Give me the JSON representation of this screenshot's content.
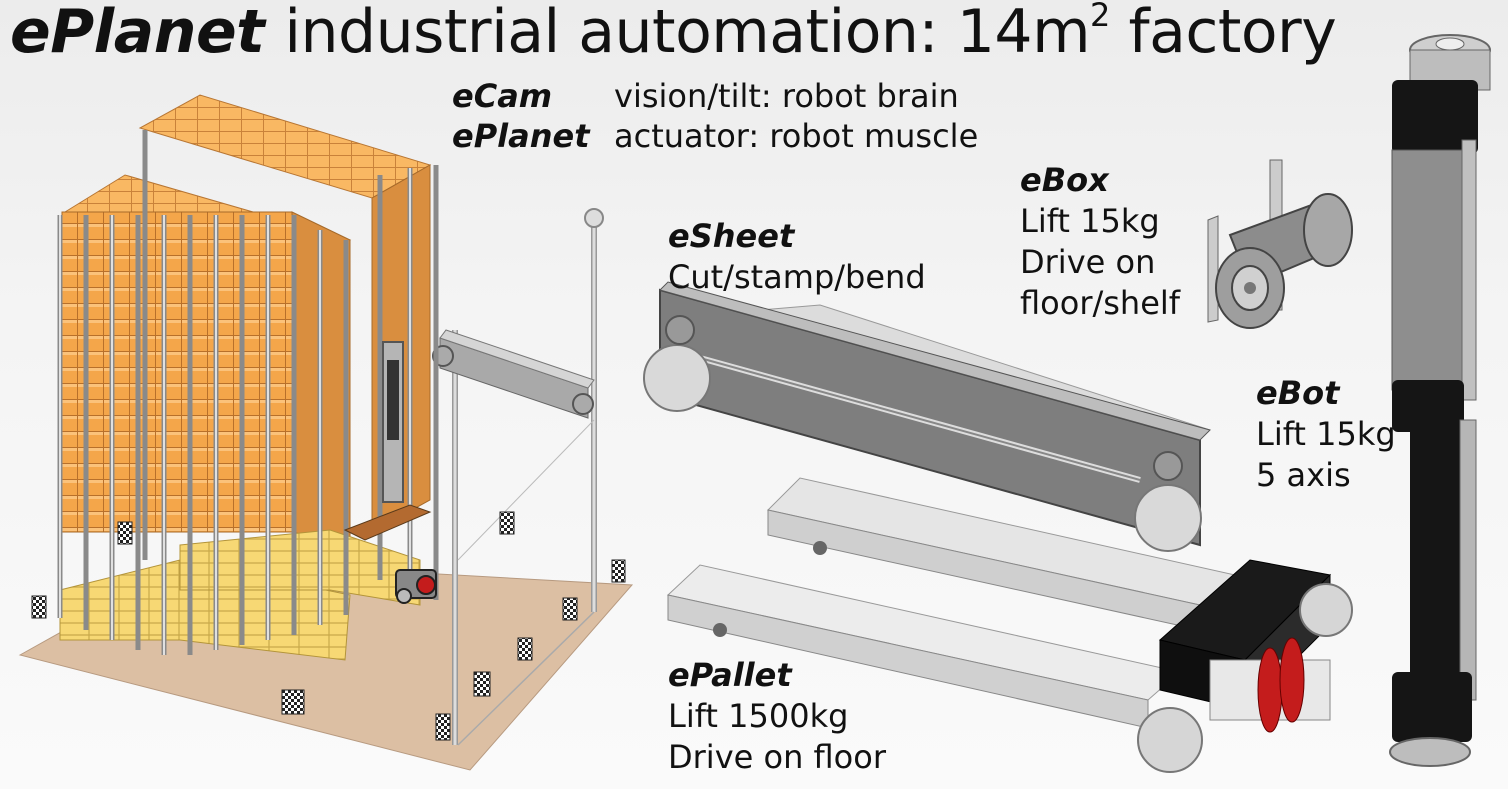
{
  "title": {
    "brand": "ePlanet",
    "text_before_sup": "industrial automation: 14m",
    "superscript": "2",
    "text_after_sup": " factory"
  },
  "subtitle": [
    {
      "name": "eCam",
      "role": "vision/tilt: robot brain"
    },
    {
      "name": "ePlanet",
      "role": "actuator:  robot muscle"
    }
  ],
  "labels": {
    "esheet": {
      "name": "eSheet",
      "lines": [
        "Cut/stamp/bend"
      ]
    },
    "ebox": {
      "name": "eBox",
      "lines": [
        "Lift 15kg",
        "Drive on",
        "floor/shelf"
      ]
    },
    "ebot": {
      "name": "eBot",
      "lines": [
        "Lift 15kg",
        "5 axis"
      ]
    },
    "epallet": {
      "name": "ePallet",
      "lines": [
        "Lift 1500kg",
        "Drive on floor"
      ]
    }
  },
  "colors": {
    "box_orange": "#f4a64a",
    "box_dark": "#c9782a",
    "pallet_yellow": "#f7d874",
    "floor": "#dcbfa3",
    "metal": "#c8c8c8",
    "dark_metal": "#7a7a7a",
    "black": "#141414",
    "wheel_red": "#c41c1c"
  }
}
